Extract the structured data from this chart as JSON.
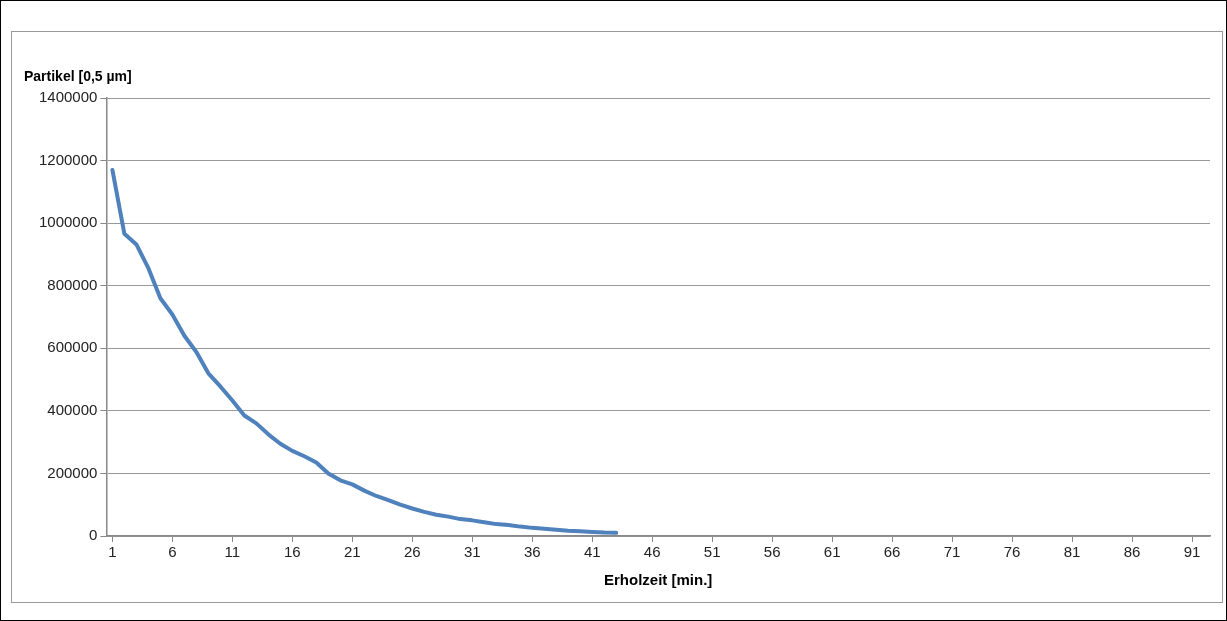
{
  "chart_data": {
    "type": "line",
    "ylabel": "Partikel [0,5 µm]",
    "xlabel": "Erholzeit [min.]",
    "x": [
      1,
      2,
      3,
      4,
      5,
      6,
      7,
      8,
      9,
      10,
      11,
      12,
      13,
      14,
      15,
      16,
      17,
      18,
      19,
      20,
      21,
      22,
      23,
      24,
      25,
      26,
      27,
      28,
      29,
      30,
      31,
      32,
      33,
      34,
      35,
      36,
      37,
      38,
      39,
      40,
      41,
      42,
      43
    ],
    "series": [
      {
        "color": "#4f81bd",
        "values": [
          1170000,
          966000,
          932000,
          856000,
          760000,
          708000,
          640000,
          588000,
          520000,
          478000,
          433000,
          385000,
          360000,
          325000,
          295000,
          272000,
          255000,
          235000,
          200000,
          178000,
          165000,
          145000,
          128000,
          115000,
          100000,
          88000,
          77000,
          68000,
          62000,
          54000,
          50000,
          44000,
          38000,
          35000,
          30000,
          26000,
          23000,
          20000,
          17000,
          15000,
          13000,
          11000,
          10000
        ]
      }
    ],
    "xlim": [
      0.5,
      92.5
    ],
    "xticks": [
      1,
      6,
      11,
      16,
      21,
      26,
      31,
      36,
      41,
      46,
      51,
      56,
      61,
      66,
      71,
      76,
      81,
      86,
      91
    ],
    "ylim": [
      0,
      1400000
    ],
    "yticks": [
      0,
      200000,
      400000,
      600000,
      800000,
      1000000,
      1200000,
      1400000
    ],
    "grid": "y",
    "legend": false,
    "marker": "none",
    "line_style": "solid"
  }
}
